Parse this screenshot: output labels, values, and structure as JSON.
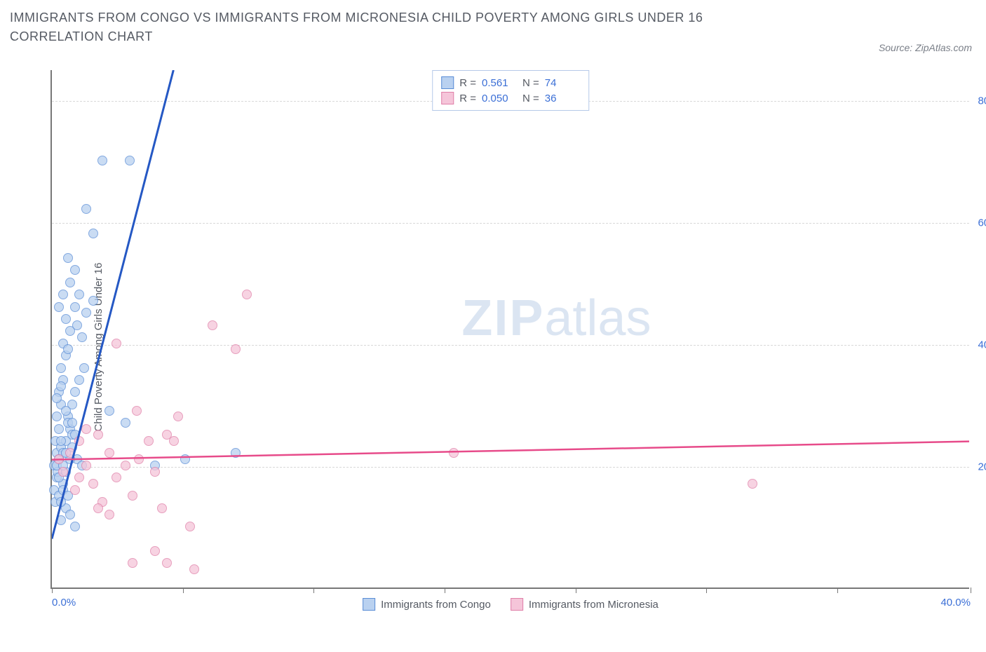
{
  "title": "IMMIGRANTS FROM CONGO VS IMMIGRANTS FROM MICRONESIA CHILD POVERTY AMONG GIRLS UNDER 16 CORRELATION CHART",
  "source_label": "Source: ZipAtlas.com",
  "y_axis_label": "Child Poverty Among Girls Under 16",
  "watermark_bold": "ZIP",
  "watermark_light": "atlas",
  "chart": {
    "type": "scatter",
    "background_color": "#ffffff",
    "grid_color": "#d8d8d8",
    "axis_color": "#777777",
    "tick_label_color": "#3b6fd6",
    "tick_fontsize": 15,
    "xlim": [
      0,
      40
    ],
    "ylim": [
      0,
      85
    ],
    "y_ticks": [
      20,
      40,
      60,
      80
    ],
    "y_tick_labels": [
      "20.0%",
      "40.0%",
      "60.0%",
      "80.0%"
    ],
    "x_ticks": [
      0,
      5.7,
      11.4,
      17.1,
      22.8,
      28.5,
      34.2,
      40
    ],
    "x_tick_labels_shown": {
      "0": "0.0%",
      "40": "40.0%"
    },
    "series": [
      {
        "name": "Immigrants from Congo",
        "marker_fill": "#b9d1f0",
        "marker_stroke": "#5a8dd6",
        "marker_opacity": 0.75,
        "marker_size": 14,
        "trend_color": "#2558c4",
        "trend_width": 3,
        "trend_start": [
          0,
          8
        ],
        "trend_end": [
          5.3,
          85
        ],
        "trend_extrapolate_dash": true,
        "R": "0.561",
        "N": "74",
        "points": [
          [
            0.1,
            20
          ],
          [
            0.2,
            22
          ],
          [
            0.15,
            24
          ],
          [
            0.3,
            21
          ],
          [
            0.2,
            18
          ],
          [
            0.4,
            23
          ],
          [
            0.1,
            16
          ],
          [
            0.25,
            19
          ],
          [
            0.3,
            26
          ],
          [
            0.5,
            22
          ],
          [
            0.15,
            14
          ],
          [
            0.2,
            28
          ],
          [
            0.4,
            30
          ],
          [
            0.6,
            24
          ],
          [
            0.3,
            32
          ],
          [
            0.8,
            26
          ],
          [
            0.5,
            34
          ],
          [
            0.7,
            28
          ],
          [
            0.4,
            36
          ],
          [
            0.9,
            30
          ],
          [
            0.6,
            38
          ],
          [
            1.0,
            32
          ],
          [
            0.5,
            40
          ],
          [
            1.2,
            34
          ],
          [
            0.8,
            42
          ],
          [
            1.4,
            36
          ],
          [
            0.6,
            44
          ],
          [
            1.0,
            46
          ],
          [
            1.2,
            48
          ],
          [
            0.8,
            50
          ],
          [
            1.5,
            45
          ],
          [
            1.8,
            47
          ],
          [
            1.0,
            52
          ],
          [
            0.7,
            54
          ],
          [
            1.1,
            43
          ],
          [
            1.3,
            41
          ],
          [
            0.9,
            25
          ],
          [
            0.7,
            27
          ],
          [
            0.5,
            17
          ],
          [
            0.3,
            15
          ],
          [
            0.6,
            13
          ],
          [
            0.8,
            12
          ],
          [
            1.0,
            10
          ],
          [
            0.4,
            11
          ],
          [
            0.6,
            19
          ],
          [
            0.9,
            23
          ],
          [
            1.1,
            21
          ],
          [
            1.3,
            20
          ],
          [
            2.2,
            70
          ],
          [
            3.4,
            70
          ],
          [
            1.5,
            62
          ],
          [
            2.5,
            29
          ],
          [
            3.2,
            27
          ],
          [
            4.5,
            20
          ],
          [
            5.8,
            21
          ],
          [
            8.0,
            22
          ],
          [
            1.8,
            58
          ],
          [
            0.5,
            48
          ],
          [
            0.3,
            46
          ],
          [
            0.7,
            39
          ],
          [
            0.4,
            33
          ],
          [
            0.2,
            31
          ],
          [
            0.6,
            29
          ],
          [
            0.9,
            27
          ],
          [
            1.0,
            25
          ],
          [
            0.4,
            24
          ],
          [
            0.2,
            20
          ],
          [
            0.3,
            18
          ],
          [
            0.5,
            16
          ],
          [
            0.7,
            15
          ],
          [
            0.4,
            14
          ],
          [
            0.8,
            21
          ],
          [
            0.5,
            20
          ],
          [
            0.6,
            22
          ]
        ]
      },
      {
        "name": "Immigrants from Micronesia",
        "marker_fill": "#f5c5d9",
        "marker_stroke": "#e07fa8",
        "marker_opacity": 0.75,
        "marker_size": 14,
        "trend_color": "#e74b8a",
        "trend_width": 2.5,
        "trend_start": [
          0,
          21
        ],
        "trend_end": [
          40,
          24
        ],
        "trend_extrapolate_dash": false,
        "R": "0.050",
        "N": "36",
        "points": [
          [
            0.3,
            21
          ],
          [
            0.5,
            19
          ],
          [
            0.8,
            22
          ],
          [
            1.0,
            16
          ],
          [
            1.2,
            24
          ],
          [
            1.5,
            20
          ],
          [
            1.8,
            17
          ],
          [
            2.0,
            25
          ],
          [
            2.2,
            14
          ],
          [
            2.5,
            22
          ],
          [
            2.8,
            18
          ],
          [
            3.2,
            20
          ],
          [
            3.5,
            15
          ],
          [
            3.8,
            21
          ],
          [
            4.2,
            24
          ],
          [
            4.5,
            19
          ],
          [
            4.8,
            13
          ],
          [
            5.0,
            25
          ],
          [
            5.3,
            24
          ],
          [
            5.5,
            28
          ],
          [
            3.7,
            29
          ],
          [
            8.5,
            48
          ],
          [
            7.0,
            43
          ],
          [
            8.0,
            39
          ],
          [
            2.8,
            40
          ],
          [
            6.0,
            10
          ],
          [
            4.5,
            6
          ],
          [
            3.5,
            4
          ],
          [
            5.0,
            4
          ],
          [
            6.2,
            3
          ],
          [
            17.5,
            22
          ],
          [
            30.5,
            17
          ],
          [
            1.5,
            26
          ],
          [
            2.0,
            13
          ],
          [
            2.5,
            12
          ],
          [
            1.2,
            18
          ]
        ]
      }
    ]
  },
  "legend_top": {
    "border_color": "#b5c9e8",
    "r_label": "R =",
    "n_label": "N ="
  },
  "legend_bottom_series1": "Immigrants from Congo",
  "legend_bottom_series2": "Immigrants from Micronesia"
}
